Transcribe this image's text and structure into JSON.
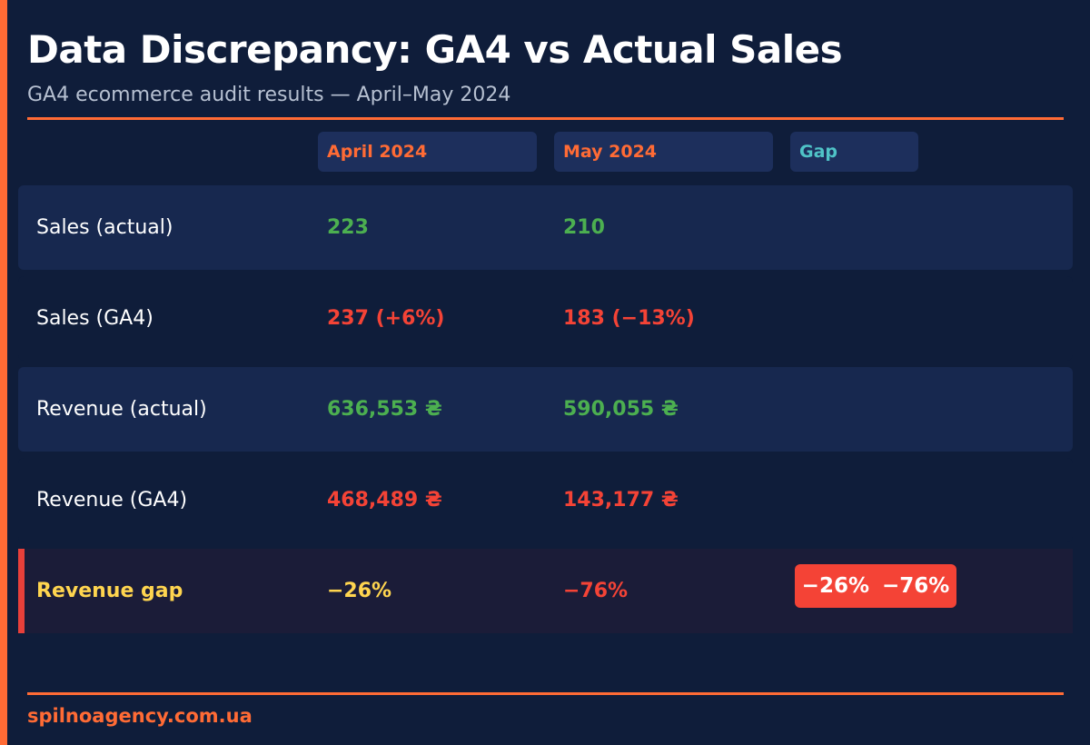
{
  "title": "Data Discrepancy: GA4 vs Actual Sales",
  "subtitle": "GA4 ecommerce audit results — April–May 2024",
  "colors": {
    "accent": "#ff6b35",
    "good": "#4caf50",
    "bad": "#f44336",
    "warning": "#ffd54f",
    "teal": "#4fc3c7"
  },
  "columns": {
    "april": "April 2024",
    "may": "May 2024",
    "gap": "Gap"
  },
  "rows": [
    {
      "label": "Sales (actual)",
      "april": "223",
      "may": "210"
    },
    {
      "label": "Sales (GA4)",
      "april": "237 (+6%)",
      "may": "183 (−13%)"
    },
    {
      "label": "Revenue (actual)",
      "april": "636,553 ₴",
      "may": "590,055 ₴"
    },
    {
      "label": "Revenue (GA4)",
      "april": "468,489 ₴",
      "may": "143,177 ₴"
    },
    {
      "label": "Revenue gap",
      "april": "−26%",
      "may": "−76%"
    }
  ],
  "gap_badge": {
    "april": "−26%",
    "may": "−76%"
  },
  "footer": "spilnoagency.com.ua"
}
